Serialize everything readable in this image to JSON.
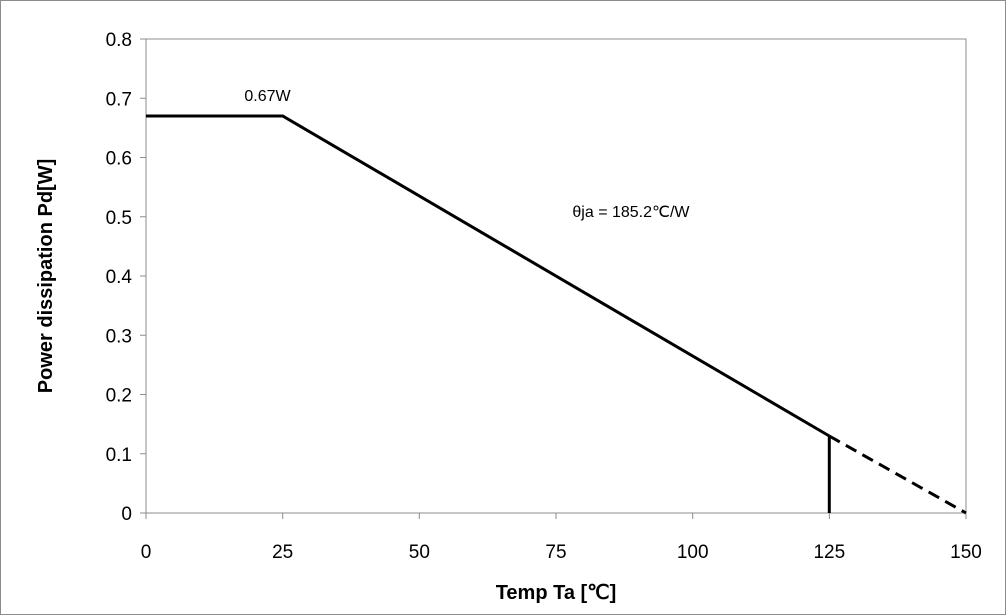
{
  "chart_data": {
    "type": "line",
    "title": "",
    "xlabel": "Temp Ta [℃]",
    "ylabel": "Power dissipation Pd[W]",
    "xlim": [
      0,
      150
    ],
    "ylim": [
      0,
      0.8
    ],
    "x_ticks": [
      0,
      25,
      50,
      75,
      100,
      125,
      150
    ],
    "x_tick_labels": [
      "0",
      "25",
      "50",
      "75",
      "100",
      "125",
      "150"
    ],
    "y_ticks": [
      0,
      0.1,
      0.2,
      0.3,
      0.4,
      0.5,
      0.6,
      0.7,
      0.8
    ],
    "y_tick_labels": [
      "0",
      "0.1",
      "0.2",
      "0.3",
      "0.4",
      "0.5",
      "0.6",
      "0.7",
      "0.8"
    ],
    "grid": false,
    "legend": "none",
    "series": [
      {
        "style": "solid",
        "color": "#000000",
        "x": [
          0,
          25,
          125
        ],
        "y": [
          0.67,
          0.67,
          0.13
        ]
      },
      {
        "style": "dashed",
        "color": "#000000",
        "x": [
          125,
          150
        ],
        "y": [
          0.13,
          0
        ]
      },
      {
        "style": "solid",
        "color": "#000000",
        "x": [
          125,
          125
        ],
        "y": [
          0,
          0.13
        ]
      }
    ],
    "annotations": [
      {
        "text": "0.67W",
        "x": 18,
        "y": 0.695
      },
      {
        "text": "θja = 185.2℃/W",
        "x": 78,
        "y": 0.5
      }
    ]
  }
}
